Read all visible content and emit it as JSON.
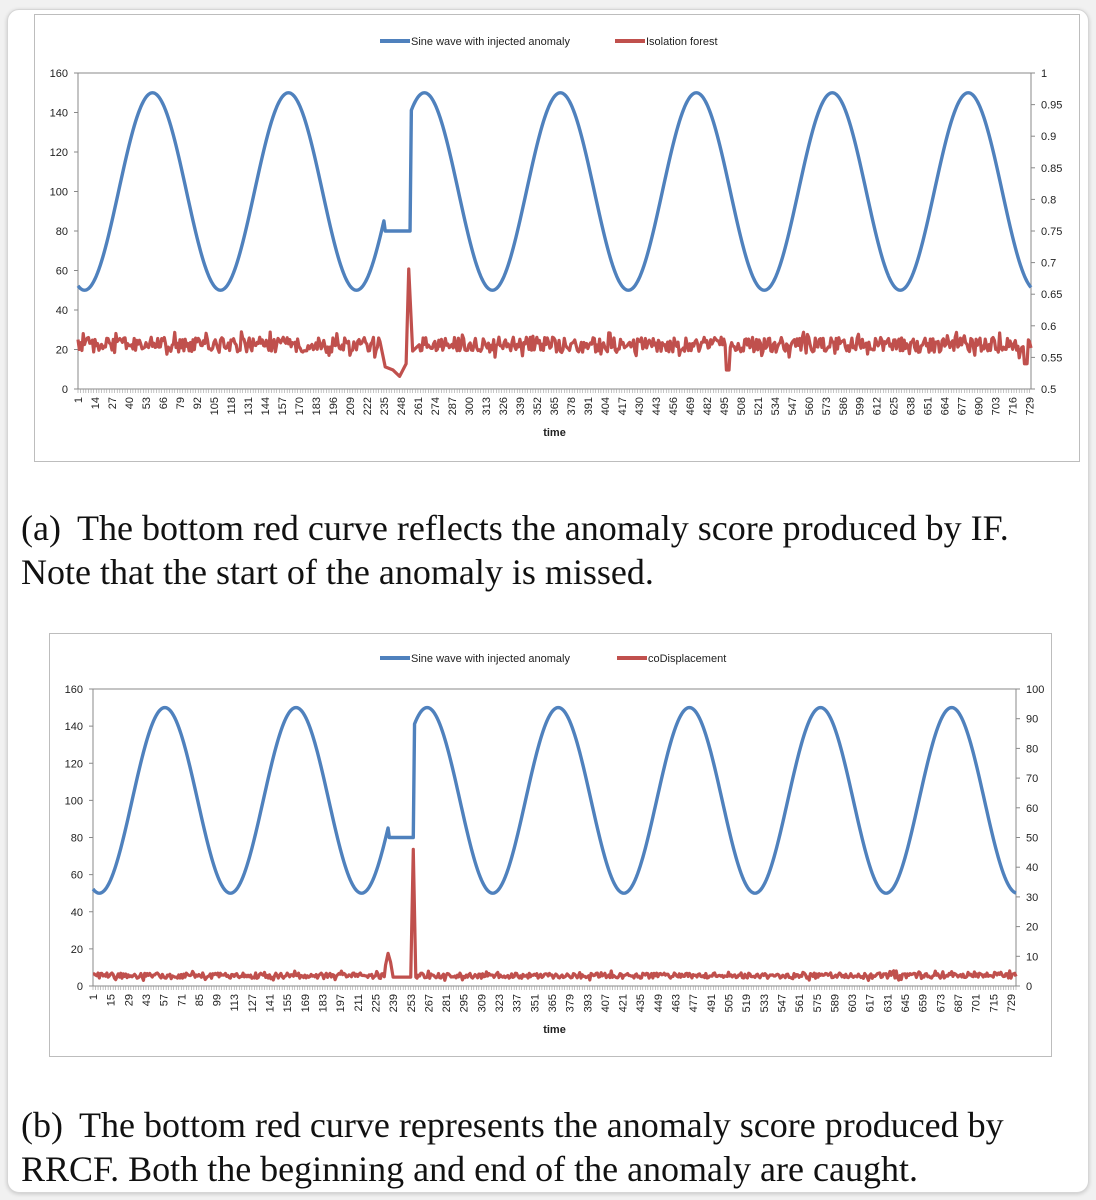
{
  "chart_data": [
    {
      "type": "line",
      "xlabel": "time",
      "ylabel": "",
      "legend_position": "top",
      "ylim": [
        0,
        160
      ],
      "yticks": [
        0,
        20,
        40,
        60,
        80,
        100,
        120,
        140,
        160
      ],
      "y2lim": [
        0.5,
        1
      ],
      "y2ticks": [
        "0.5",
        "0.55",
        "0.6",
        "0.65",
        "0.7",
        "0.75",
        "0.8",
        "0.85",
        "0.9",
        "0.95",
        "1"
      ],
      "xticks": [
        1,
        14,
        27,
        40,
        53,
        66,
        79,
        92,
        105,
        118,
        131,
        144,
        157,
        170,
        183,
        196,
        209,
        222,
        235,
        248,
        261,
        274,
        287,
        300,
        313,
        326,
        339,
        352,
        365,
        378,
        391,
        404,
        417,
        430,
        443,
        456,
        469,
        482,
        495,
        508,
        521,
        534,
        547,
        560,
        573,
        586,
        599,
        612,
        625,
        638,
        651,
        664,
        677,
        690,
        703,
        716,
        729
      ],
      "x_range": [
        1,
        730
      ],
      "series": [
        {
          "name": "Sine wave with injected anomaly",
          "axis": "left",
          "color": "#4f81bd",
          "sine": {
            "offset": 100,
            "amplitude": 50,
            "period": 104,
            "peak_at": 58
          },
          "anomaly": {
            "from": 235,
            "to": 256,
            "value": 80
          }
        },
        {
          "name": "Isolation forest",
          "axis": "right",
          "color": "#c0504d",
          "baseline": 0.57,
          "noise": 0.012,
          "segments": [
            {
              "x": 232,
              "value": 0.575
            },
            {
              "x": 236,
              "value": 0.535
            },
            {
              "x": 242,
              "value": 0.53
            },
            {
              "x": 247,
              "value": 0.52
            },
            {
              "x": 252,
              "value": 0.54
            },
            {
              "x": 254,
              "value": 0.69
            },
            {
              "x": 257,
              "value": 0.56
            },
            {
              "x": 262,
              "value": 0.57
            }
          ],
          "dips": [
            {
              "x": 498,
              "value": 0.53
            },
            {
              "x": 726,
              "value": 0.54
            }
          ]
        }
      ]
    },
    {
      "type": "line",
      "xlabel": "time",
      "ylabel": "",
      "legend_position": "top",
      "ylim": [
        0,
        160
      ],
      "yticks": [
        0,
        20,
        40,
        60,
        80,
        100,
        120,
        140,
        160
      ],
      "y2lim": [
        0,
        100
      ],
      "y2ticks": [
        "0",
        "10",
        "20",
        "30",
        "40",
        "50",
        "60",
        "70",
        "80",
        "90",
        "100"
      ],
      "xticks": [
        1,
        15,
        29,
        43,
        57,
        71,
        85,
        99,
        113,
        127,
        141,
        155,
        169,
        183,
        197,
        211,
        225,
        239,
        253,
        267,
        281,
        295,
        309,
        323,
        337,
        351,
        365,
        379,
        393,
        407,
        421,
        435,
        449,
        463,
        477,
        491,
        505,
        519,
        533,
        547,
        561,
        575,
        589,
        603,
        617,
        631,
        645,
        659,
        673,
        687,
        701,
        715,
        729
      ],
      "x_range": [
        1,
        733
      ],
      "series": [
        {
          "name": "Sine wave with injected anomaly",
          "axis": "left",
          "color": "#4f81bd",
          "sine": {
            "offset": 100,
            "amplitude": 50,
            "period": 104,
            "peak_at": 58
          },
          "anomaly": {
            "from": 235,
            "to": 256,
            "value": 80
          }
        },
        {
          "name": "coDisplacement",
          "axis": "right",
          "color": "#c0504d",
          "baseline": 3.5,
          "noise": 0.9,
          "spikes": [
            {
              "x": 233,
              "value": 7
            },
            {
              "x": 235,
              "value": 11
            },
            {
              "x": 237,
              "value": 8
            },
            {
              "x": 239,
              "value": 3
            },
            {
              "x": 253,
              "value": 3
            },
            {
              "x": 255,
              "value": 46
            },
            {
              "x": 257,
              "value": 3
            }
          ]
        }
      ]
    }
  ],
  "captions": [
    {
      "tag": "(a)",
      "text": "The bottom red curve reflects the anomaly score produced by IF. Note that the start of the anomaly is missed."
    },
    {
      "tag": "(b)",
      "text": "The bottom red curve represents the anomaly score produced by RRCF. Both the beginning and end of the anomaly are caught."
    }
  ]
}
